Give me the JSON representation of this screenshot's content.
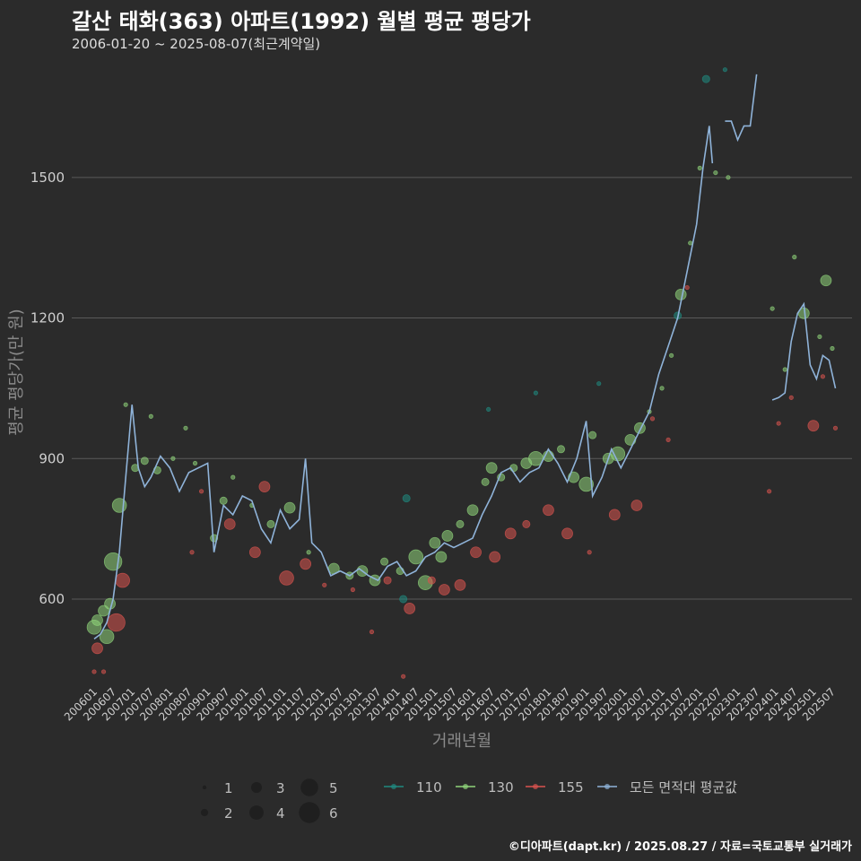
{
  "title": "갈산 태화(363) 아파트(1992) 월별 평균 평당가",
  "subtitle": "2006-01-20 ~ 2025-08-07(최근계약일)",
  "credit": "©디아파트(dapt.kr) / 2025.08.27 / 자료=국토교통부 실거래가",
  "colors": {
    "background": "#2b2b2b",
    "grid": "#5a5a5a",
    "s110": "#1f8a80",
    "s130": "#8fd47a",
    "s155": "#d9534f",
    "avg": "#8fb3d9"
  },
  "chart_data": {
    "type": "scatter",
    "xlabel": "거래년월",
    "ylabel": "평균 평당가(만 원)",
    "ylim": [
      420,
      1760
    ],
    "xlim": [
      "2006-01",
      "2025-09"
    ],
    "yticks": [
      600,
      900,
      1200,
      1500
    ],
    "xticks": [
      "200601",
      "200607",
      "200701",
      "200707",
      "200801",
      "200807",
      "200901",
      "200907",
      "201001",
      "201007",
      "201101",
      "201107",
      "201201",
      "201207",
      "201301",
      "201307",
      "201401",
      "201407",
      "201501",
      "201507",
      "201601",
      "201607",
      "201701",
      "201707",
      "201801",
      "201807",
      "201901",
      "201907",
      "202001",
      "202007",
      "202101",
      "202107",
      "202201",
      "202207",
      "202301",
      "202307",
      "202401",
      "202407",
      "202501",
      "202507"
    ],
    "size_legend": {
      "title": "",
      "values": [
        1,
        2,
        3,
        4,
        5,
        6
      ]
    },
    "color_legend": [
      "110",
      "130",
      "155",
      "모든 면적대 평균값"
    ],
    "series": [
      {
        "name": "110",
        "points": [
          [
            "2014-04",
            815,
            2
          ],
          [
            "2014-03",
            600,
            2
          ],
          [
            "2019-05",
            1060,
            1
          ],
          [
            "2021-06",
            1205,
            2
          ],
          [
            "2022-03",
            1710,
            2
          ],
          [
            "2022-09",
            1730,
            1
          ],
          [
            "2016-06",
            1005,
            1
          ],
          [
            "2017-09",
            1040,
            1
          ]
        ]
      },
      {
        "name": "130",
        "points": [
          [
            "2006-01",
            540,
            4
          ],
          [
            "2006-02",
            555,
            3
          ],
          [
            "2006-04",
            575,
            3
          ],
          [
            "2006-05",
            520,
            4
          ],
          [
            "2006-06",
            590,
            3
          ],
          [
            "2006-07",
            680,
            5
          ],
          [
            "2006-09",
            800,
            4
          ],
          [
            "2006-11",
            1015,
            1
          ],
          [
            "2007-02",
            880,
            2
          ],
          [
            "2007-05",
            895,
            2
          ],
          [
            "2007-07",
            990,
            1
          ],
          [
            "2007-09",
            875,
            2
          ],
          [
            "2008-02",
            900,
            1
          ],
          [
            "2008-06",
            965,
            1
          ],
          [
            "2008-09",
            890,
            1
          ],
          [
            "2009-03",
            730,
            2
          ],
          [
            "2009-06",
            810,
            2
          ],
          [
            "2009-09",
            860,
            1
          ],
          [
            "2010-03",
            800,
            1
          ],
          [
            "2010-09",
            760,
            2
          ],
          [
            "2011-03",
            795,
            3
          ],
          [
            "2011-09",
            700,
            1
          ],
          [
            "2012-05",
            665,
            3
          ],
          [
            "2012-10",
            650,
            2
          ],
          [
            "2013-02",
            660,
            3
          ],
          [
            "2013-06",
            640,
            3
          ],
          [
            "2013-09",
            680,
            2
          ],
          [
            "2014-02",
            660,
            2
          ],
          [
            "2014-07",
            690,
            4
          ],
          [
            "2014-10",
            635,
            4
          ],
          [
            "2015-01",
            720,
            3
          ],
          [
            "2015-03",
            690,
            3
          ],
          [
            "2015-05",
            735,
            3
          ],
          [
            "2015-09",
            760,
            2
          ],
          [
            "2016-01",
            790,
            3
          ],
          [
            "2016-05",
            850,
            2
          ],
          [
            "2016-07",
            880,
            3
          ],
          [
            "2016-10",
            860,
            2
          ],
          [
            "2017-02",
            880,
            2
          ],
          [
            "2017-06",
            890,
            3
          ],
          [
            "2017-09",
            900,
            4
          ],
          [
            "2018-01",
            905,
            3
          ],
          [
            "2018-05",
            920,
            2
          ],
          [
            "2018-09",
            860,
            3
          ],
          [
            "2019-01",
            845,
            4
          ],
          [
            "2019-03",
            950,
            2
          ],
          [
            "2019-08",
            900,
            3
          ],
          [
            "2019-11",
            910,
            4
          ],
          [
            "2020-03",
            940,
            3
          ],
          [
            "2020-06",
            965,
            3
          ],
          [
            "2020-09",
            1000,
            1
          ],
          [
            "2021-01",
            1050,
            1
          ],
          [
            "2021-04",
            1120,
            1
          ],
          [
            "2021-07",
            1250,
            3
          ],
          [
            "2021-10",
            1360,
            1
          ],
          [
            "2022-01",
            1520,
            1
          ],
          [
            "2022-06",
            1510,
            1
          ],
          [
            "2022-10",
            1500,
            1
          ],
          [
            "2023-12",
            1220,
            1
          ],
          [
            "2024-04",
            1090,
            1
          ],
          [
            "2024-07",
            1330,
            1
          ],
          [
            "2024-10",
            1210,
            3
          ],
          [
            "2025-03",
            1160,
            1
          ],
          [
            "2025-05",
            1280,
            3
          ],
          [
            "2025-07",
            1135,
            1
          ]
        ]
      },
      {
        "name": "155",
        "points": [
          [
            "2006-01",
            445,
            1
          ],
          [
            "2006-02",
            495,
            3
          ],
          [
            "2006-04",
            445,
            1
          ],
          [
            "2006-08",
            550,
            5
          ],
          [
            "2006-10",
            640,
            4
          ],
          [
            "2008-08",
            700,
            1
          ],
          [
            "2008-11",
            830,
            1
          ],
          [
            "2009-08",
            760,
            3
          ],
          [
            "2010-04",
            700,
            3
          ],
          [
            "2010-07",
            840,
            3
          ],
          [
            "2011-02",
            645,
            4
          ],
          [
            "2011-08",
            675,
            3
          ],
          [
            "2012-02",
            630,
            1
          ],
          [
            "2012-11",
            620,
            1
          ],
          [
            "2013-05",
            530,
            1
          ],
          [
            "2013-10",
            640,
            2
          ],
          [
            "2014-05",
            580,
            3
          ],
          [
            "2014-12",
            640,
            2
          ],
          [
            "2015-04",
            620,
            3
          ],
          [
            "2015-09",
            630,
            3
          ],
          [
            "2016-02",
            700,
            3
          ],
          [
            "2016-08",
            690,
            3
          ],
          [
            "2017-01",
            740,
            3
          ],
          [
            "2017-06",
            760,
            2
          ],
          [
            "2018-01",
            790,
            3
          ],
          [
            "2018-07",
            740,
            3
          ],
          [
            "2019-02",
            700,
            1
          ],
          [
            "2019-10",
            780,
            3
          ],
          [
            "2020-05",
            800,
            3
          ],
          [
            "2020-10",
            985,
            1
          ],
          [
            "2021-03",
            940,
            1
          ],
          [
            "2021-09",
            1265,
            1
          ],
          [
            "2023-11",
            830,
            1
          ],
          [
            "2024-02",
            975,
            1
          ],
          [
            "2024-06",
            1030,
            1
          ],
          [
            "2025-01",
            970,
            3
          ],
          [
            "2025-04",
            1075,
            1
          ],
          [
            "2025-08",
            965,
            1
          ],
          [
            "2014-03",
            435,
            1
          ]
        ]
      }
    ],
    "average": {
      "name": "모든 면적대 평균값",
      "segments": [
        [
          [
            "2006-01",
            515
          ],
          [
            "2006-03",
            525
          ],
          [
            "2006-05",
            550
          ],
          [
            "2006-07",
            600
          ],
          [
            "2006-09",
            700
          ],
          [
            "2006-11",
            860
          ],
          [
            "2007-01",
            1015
          ],
          [
            "2007-03",
            880
          ],
          [
            "2007-05",
            840
          ],
          [
            "2007-07",
            860
          ],
          [
            "2007-10",
            905
          ],
          [
            "2008-01",
            880
          ],
          [
            "2008-04",
            830
          ],
          [
            "2008-07",
            870
          ],
          [
            "2008-10",
            880
          ],
          [
            "2009-01",
            890
          ],
          [
            "2009-03",
            700
          ],
          [
            "2009-06",
            800
          ],
          [
            "2009-09",
            780
          ],
          [
            "2009-12",
            820
          ],
          [
            "2010-03",
            810
          ],
          [
            "2010-06",
            750
          ],
          [
            "2010-09",
            720
          ],
          [
            "2010-12",
            790
          ],
          [
            "2011-03",
            750
          ],
          [
            "2011-06",
            770
          ],
          [
            "2011-08",
            900
          ],
          [
            "2011-10",
            720
          ],
          [
            "2012-01",
            700
          ],
          [
            "2012-04",
            650
          ],
          [
            "2012-07",
            660
          ],
          [
            "2012-10",
            650
          ],
          [
            "2013-01",
            665
          ],
          [
            "2013-04",
            650
          ],
          [
            "2013-07",
            640
          ],
          [
            "2013-10",
            670
          ],
          [
            "2014-01",
            680
          ],
          [
            "2014-04",
            650
          ],
          [
            "2014-07",
            660
          ],
          [
            "2014-10",
            690
          ],
          [
            "2015-01",
            700
          ],
          [
            "2015-04",
            720
          ],
          [
            "2015-07",
            710
          ],
          [
            "2015-10",
            720
          ],
          [
            "2016-01",
            730
          ],
          [
            "2016-04",
            780
          ],
          [
            "2016-07",
            820
          ],
          [
            "2016-10",
            870
          ],
          [
            "2017-01",
            880
          ],
          [
            "2017-04",
            850
          ],
          [
            "2017-07",
            870
          ],
          [
            "2017-10",
            880
          ],
          [
            "2018-01",
            920
          ],
          [
            "2018-04",
            890
          ],
          [
            "2018-07",
            850
          ],
          [
            "2018-10",
            900
          ],
          [
            "2019-01",
            980
          ],
          [
            "2019-03",
            820
          ],
          [
            "2019-06",
            860
          ],
          [
            "2019-09",
            920
          ],
          [
            "2019-12",
            880
          ],
          [
            "2020-03",
            920
          ],
          [
            "2020-06",
            960
          ],
          [
            "2020-09",
            1000
          ],
          [
            "2020-12",
            1080
          ],
          [
            "2021-03",
            1140
          ],
          [
            "2021-06",
            1200
          ],
          [
            "2021-09",
            1300
          ],
          [
            "2021-12",
            1400
          ],
          [
            "2022-02",
            1520
          ],
          [
            "2022-04",
            1610
          ],
          [
            "2022-05",
            1530
          ]
        ],
        [
          [
            "2022-09",
            1620
          ],
          [
            "2022-11",
            1620
          ],
          [
            "2023-01",
            1580
          ],
          [
            "2023-03",
            1610
          ],
          [
            "2023-05",
            1610
          ],
          [
            "2023-07",
            1720
          ]
        ],
        [
          [
            "2023-12",
            1025
          ],
          [
            "2024-02",
            1030
          ],
          [
            "2024-04",
            1040
          ],
          [
            "2024-06",
            1150
          ],
          [
            "2024-08",
            1210
          ],
          [
            "2024-10",
            1230
          ],
          [
            "2024-12",
            1100
          ],
          [
            "2025-02",
            1070
          ],
          [
            "2025-04",
            1120
          ],
          [
            "2025-06",
            1110
          ],
          [
            "2025-08",
            1050
          ]
        ]
      ]
    }
  }
}
